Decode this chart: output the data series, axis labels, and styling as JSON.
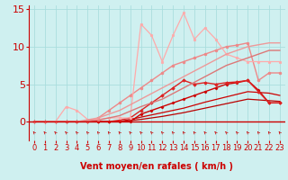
{
  "background_color": "#cff0f0",
  "grid_color": "#aadddd",
  "xlabel": "Vent moyen/en rafales ( km/h )",
  "xlim": [
    -0.5,
    23.5
  ],
  "ylim": [
    -2.5,
    15.5
  ],
  "xticks": [
    0,
    1,
    2,
    3,
    4,
    5,
    6,
    7,
    8,
    9,
    10,
    11,
    12,
    13,
    14,
    15,
    16,
    17,
    18,
    19,
    20,
    21,
    22,
    23
  ],
  "yticks": [
    0,
    5,
    10,
    15
  ],
  "lines": [
    {
      "x": [
        0,
        2,
        4,
        6,
        8,
        10,
        12,
        14,
        16,
        18,
        20,
        22,
        23
      ],
      "y": [
        0,
        0,
        0,
        0,
        0,
        0.3,
        0.7,
        1.2,
        1.8,
        2.4,
        3.0,
        2.8,
        2.7
      ],
      "color": "#bb0000",
      "lw": 0.9,
      "marker": null,
      "ms": 0
    },
    {
      "x": [
        0,
        2,
        4,
        6,
        8,
        10,
        12,
        14,
        16,
        18,
        20,
        22,
        23
      ],
      "y": [
        0,
        0,
        0,
        0,
        0,
        0.6,
        1.2,
        1.8,
        2.6,
        3.3,
        4.0,
        3.8,
        3.5
      ],
      "color": "#cc0000",
      "lw": 0.9,
      "marker": null,
      "ms": 0
    },
    {
      "x": [
        0,
        1,
        2,
        3,
        4,
        5,
        6,
        7,
        8,
        9,
        10,
        11,
        12,
        13,
        14,
        15,
        16,
        17,
        18,
        19,
        20,
        21,
        22,
        23
      ],
      "y": [
        0,
        0,
        0,
        0,
        0,
        0,
        0,
        0,
        0,
        0,
        1.0,
        1.5,
        2.0,
        2.5,
        3.0,
        3.5,
        4.0,
        4.5,
        5.0,
        5.2,
        5.5,
        4.2,
        2.5,
        2.5
      ],
      "color": "#cc0000",
      "lw": 1.0,
      "marker": "D",
      "ms": 1.5
    },
    {
      "x": [
        0,
        1,
        2,
        3,
        4,
        5,
        6,
        7,
        8,
        9,
        10,
        11,
        12,
        13,
        14,
        15,
        16,
        17,
        18,
        19,
        20,
        21,
        22,
        23
      ],
      "y": [
        0,
        0,
        0,
        0,
        0,
        0,
        0,
        0,
        0.2,
        0.5,
        1.5,
        2.5,
        3.5,
        4.5,
        5.5,
        5.0,
        5.2,
        5.0,
        5.2,
        5.3,
        5.5,
        4.0,
        2.5,
        2.5
      ],
      "color": "#dd2222",
      "lw": 1.0,
      "marker": "D",
      "ms": 1.8
    },
    {
      "x": [
        0,
        1,
        2,
        3,
        4,
        5,
        6,
        7,
        8,
        9,
        10,
        11,
        12,
        13,
        14,
        15,
        16,
        17,
        18,
        19,
        20,
        21,
        22,
        23
      ],
      "y": [
        0,
        0,
        0,
        0,
        0,
        0,
        0.5,
        1.5,
        2.5,
        3.5,
        4.5,
        5.5,
        6.5,
        7.5,
        8.0,
        8.5,
        9.0,
        9.5,
        10.0,
        10.2,
        10.5,
        5.5,
        6.5,
        6.5
      ],
      "color": "#ee8888",
      "lw": 1.0,
      "marker": "o",
      "ms": 2.0
    },
    {
      "x": [
        0,
        1,
        2,
        3,
        4,
        5,
        6,
        7,
        8,
        9,
        10,
        11,
        12,
        13,
        14,
        15,
        16,
        17,
        18,
        19,
        20,
        21,
        22,
        23
      ],
      "y": [
        0,
        0,
        0,
        2.0,
        1.5,
        0.3,
        0.3,
        0.5,
        0.5,
        0.5,
        13.0,
        11.5,
        8.0,
        11.5,
        14.5,
        11.0,
        12.5,
        11.0,
        9.0,
        8.5,
        8.0,
        8.0,
        8.0,
        8.0
      ],
      "color": "#ffaaaa",
      "lw": 0.9,
      "marker": "o",
      "ms": 1.8
    },
    {
      "x": [
        0,
        2,
        4,
        6,
        8,
        10,
        12,
        14,
        16,
        18,
        20,
        22,
        23
      ],
      "y": [
        0,
        0,
        0,
        0.5,
        1.5,
        3.0,
        4.5,
        6.0,
        7.5,
        9.0,
        10.0,
        10.5,
        10.5
      ],
      "color": "#ee9999",
      "lw": 1.0,
      "marker": null,
      "ms": 0
    },
    {
      "x": [
        0,
        2,
        4,
        6,
        8,
        10,
        12,
        14,
        16,
        18,
        20,
        22,
        23
      ],
      "y": [
        0,
        0,
        0,
        0.2,
        0.8,
        2.0,
        3.0,
        4.5,
        6.0,
        7.5,
        8.5,
        9.5,
        9.5
      ],
      "color": "#dd7777",
      "lw": 1.0,
      "marker": null,
      "ms": 0
    }
  ],
  "arrow_color": "#cc0000",
  "xlabel_color": "#cc0000",
  "xlabel_fontsize": 7,
  "tick_color": "#cc0000",
  "tick_fontsize": 6,
  "ytick_fontsize": 8
}
